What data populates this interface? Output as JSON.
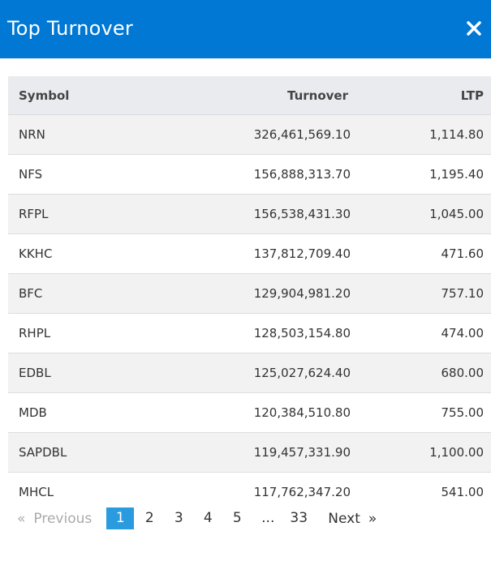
{
  "modal": {
    "title": "Top Turnover",
    "close_icon": "close-icon"
  },
  "table": {
    "headers": {
      "symbol": "Symbol",
      "turnover": "Turnover",
      "ltp": "LTP"
    },
    "rows": [
      {
        "symbol": "NRN",
        "turnover": "326,461,569.10",
        "ltp": "1,114.80"
      },
      {
        "symbol": "NFS",
        "turnover": "156,888,313.70",
        "ltp": "1,195.40"
      },
      {
        "symbol": "RFPL",
        "turnover": "156,538,431.30",
        "ltp": "1,045.00"
      },
      {
        "symbol": "KKHC",
        "turnover": "137,812,709.40",
        "ltp": "471.60"
      },
      {
        "symbol": "BFC",
        "turnover": "129,904,981.20",
        "ltp": "757.10"
      },
      {
        "symbol": "RHPL",
        "turnover": "128,503,154.80",
        "ltp": "474.00"
      },
      {
        "symbol": "EDBL",
        "turnover": "125,027,624.40",
        "ltp": "680.00"
      },
      {
        "symbol": "MDB",
        "turnover": "120,384,510.80",
        "ltp": "755.00"
      },
      {
        "symbol": "SAPDBL",
        "turnover": "119,457,331.90",
        "ltp": "1,100.00"
      },
      {
        "symbol": "MHCL",
        "turnover": "117,762,347.20",
        "ltp": "541.00"
      }
    ]
  },
  "pagination": {
    "prev_arrow": "«",
    "prev_label": "Previous",
    "pages": [
      "1",
      "2",
      "3",
      "4",
      "5"
    ],
    "active_page": "1",
    "ellipsis": "...",
    "last_page": "33",
    "next_label": "Next",
    "next_arrow": "»"
  },
  "colors": {
    "header_bg": "#0078d4",
    "active_page_bg": "#2b9be0",
    "table_header_bg": "#e9ebee",
    "stripe_bg": "#f2f2f2"
  }
}
